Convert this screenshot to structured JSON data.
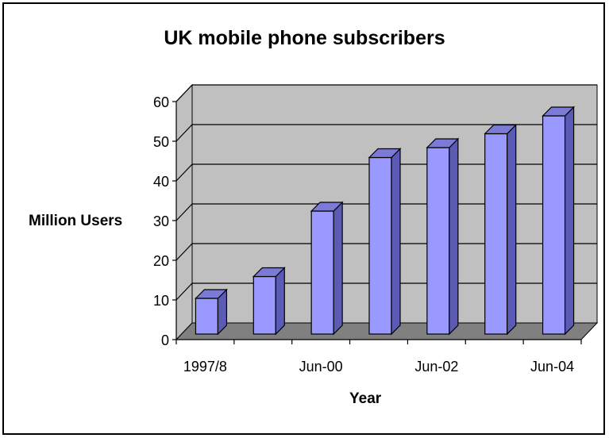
{
  "chart_data": {
    "type": "bar",
    "title": "UK mobile phone subscribers",
    "xlabel": "Year",
    "ylabel": "Million Users",
    "ylim": [
      0,
      60
    ],
    "yticks": [
      "0",
      "10",
      "20",
      "30",
      "40",
      "50",
      "60"
    ],
    "categories": [
      "1997/8",
      "",
      "Jun-00",
      "",
      "Jun-02",
      "",
      "Jun-04"
    ],
    "values": [
      9,
      14.5,
      31,
      44.5,
      47,
      50.5,
      55
    ],
    "grid": true,
    "legend": "none",
    "style": "3d-column",
    "colors": {
      "bar_front": "#9999ff",
      "bar_side": "#5b5bb5",
      "bar_top": "#7b7bd6",
      "wall": "#c0c0c0",
      "floor": "#808080"
    }
  }
}
